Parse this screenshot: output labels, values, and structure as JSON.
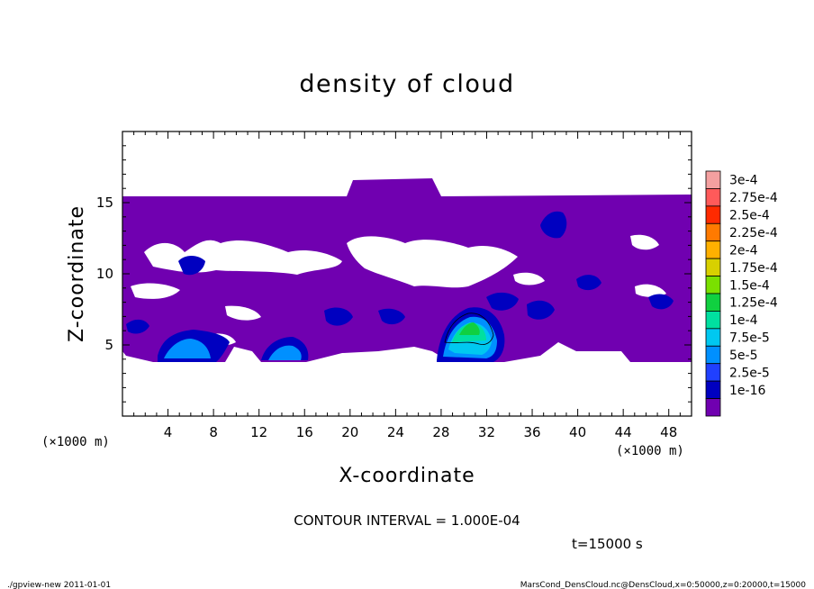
{
  "chart_data": {
    "type": "heatmap",
    "title": "density of cloud",
    "xlabel": "X-coordinate",
    "ylabel": "Z-coordinate",
    "x_unit_left": "(×1000 m)",
    "x_unit_right": "(×1000 m)",
    "xlim": [
      0,
      50
    ],
    "ylim": [
      0,
      20
    ],
    "x_ticks": [
      "4",
      "8",
      "12",
      "16",
      "20",
      "24",
      "28",
      "32",
      "36",
      "40",
      "44",
      "48"
    ],
    "y_ticks": [
      "5",
      "10",
      "15"
    ],
    "colorbar": {
      "labels": [
        "3e-4",
        "2.75e-4",
        "2.5e-4",
        "2.25e-4",
        "2e-4",
        "1.75e-4",
        "1.5e-4",
        "1.25e-4",
        "1e-4",
        "7.5e-5",
        "5e-5",
        "2.5e-5",
        "1e-16"
      ],
      "colors": [
        "#f4a0a0",
        "#ff5a5a",
        "#ff2a00",
        "#ff7a00",
        "#ffb000",
        "#d8d000",
        "#7ae000",
        "#10d040",
        "#00e0a0",
        "#00c8f0",
        "#0090ff",
        "#2040ff",
        "#0000c0",
        "#7000b0"
      ]
    },
    "contour_interval": "CONTOUR INTERVAL = 1.000E-04",
    "time_label": "t=15000 s"
  },
  "footer": {
    "left": "./gpview-new  2011-01-01",
    "right": "MarsCond_DensCloud.nc@DensCloud,x=0:50000,z=0:20000,t=15000"
  }
}
